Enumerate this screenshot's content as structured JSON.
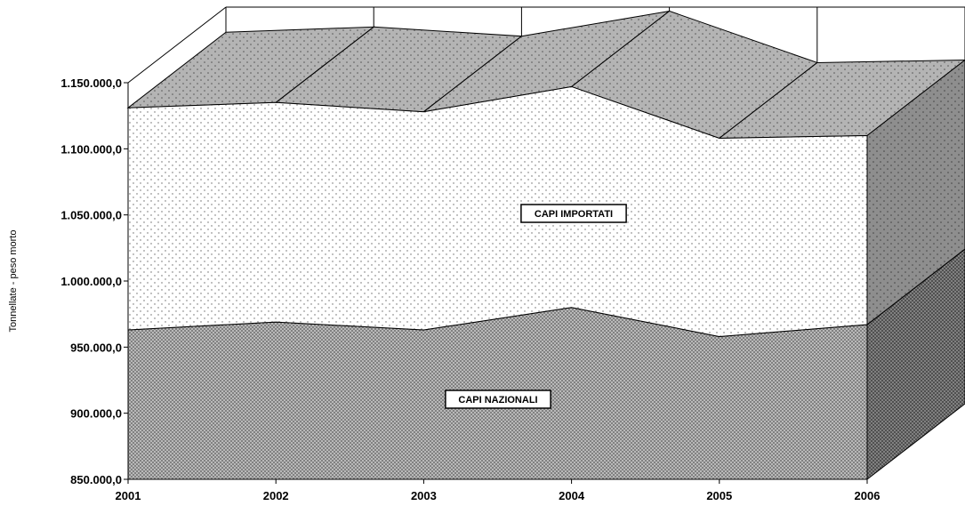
{
  "chart_data": {
    "type": "area",
    "stacked": true,
    "three_d": true,
    "ylabel": "Tonnellate - peso morto",
    "xlabel": "",
    "title": "",
    "categories": [
      "2001",
      "2002",
      "2003",
      "2004",
      "2005",
      "2006"
    ],
    "ylim": [
      850000,
      1150000
    ],
    "y_ticks": [
      "850.000,0",
      "900.000,0",
      "950.000,0",
      "1.000.000,0",
      "1.050.000,0",
      "1.100.000,0",
      "1.150.000,0"
    ],
    "y_tick_values": [
      850000,
      900000,
      950000,
      1000000,
      1050000,
      1100000,
      1150000
    ],
    "series": [
      {
        "name": "CAPI NAZIONALI",
        "cumulative": [
          963000,
          969000,
          963000,
          980000,
          958000,
          967000
        ],
        "pattern": "crosshatch"
      },
      {
        "name": "CAPI IMPORTATI",
        "cumulative": [
          1131000,
          1135000,
          1128000,
          1147000,
          1108000,
          1110000
        ],
        "pattern": "dots"
      }
    ],
    "grid": false,
    "legend": "inline labels"
  }
}
